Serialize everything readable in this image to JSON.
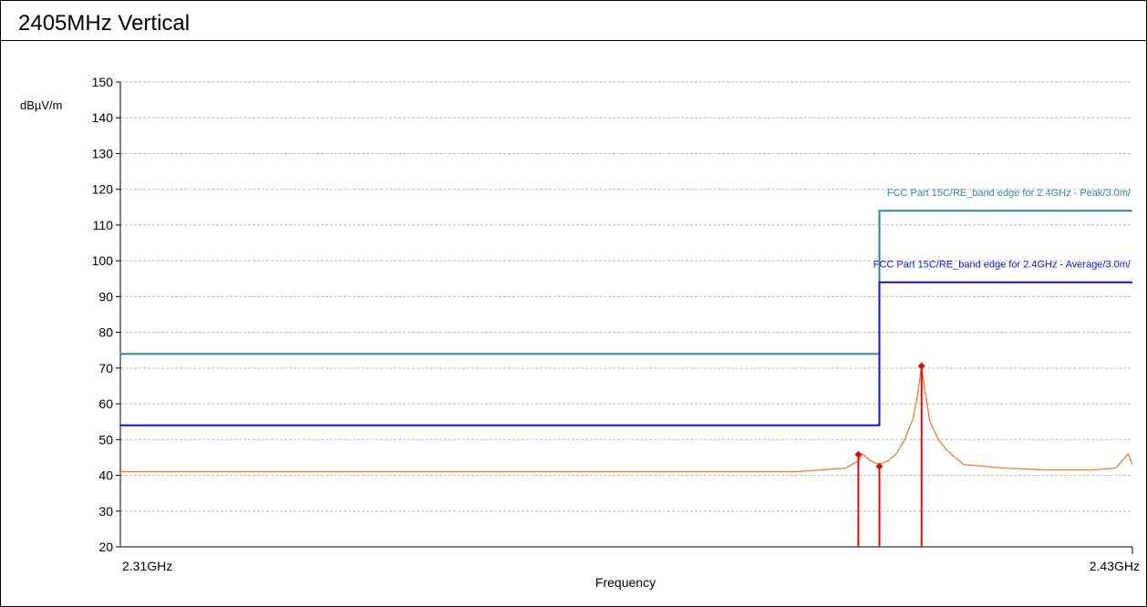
{
  "title": "2405MHz Vertical",
  "chart_data": {
    "type": "line",
    "title": "2405MHz Vertical",
    "ylabel": "dBµV/m",
    "xlabel": "Frequency",
    "x_tick_labels": [
      "2.31GHz",
      "2.43GHz"
    ],
    "xlim": [
      2.31,
      2.43
    ],
    "ylim": [
      20,
      150
    ],
    "y_ticks": [
      20,
      30,
      40,
      50,
      60,
      70,
      80,
      90,
      100,
      110,
      120,
      130,
      140,
      150
    ],
    "grid": true,
    "series": [
      {
        "name": "FCC Part 15C/RE_band edge for 2.4GHz  - Peak/3.0m/",
        "color": "#2e8b8b",
        "x": [
          2.31,
          2.4,
          2.4,
          2.43
        ],
        "y": [
          74,
          74,
          114,
          114
        ]
      },
      {
        "name": "FCC Part 15C/RE_band edge for 2.4GHz  - Average/3.0m/",
        "color": "#1111cc",
        "x": [
          2.31,
          2.4,
          2.4,
          2.43
        ],
        "y": [
          54,
          54,
          94,
          94
        ]
      },
      {
        "color": "#f07020",
        "x": [
          2.31,
          2.33,
          2.35,
          2.37,
          2.39,
          2.396,
          2.3975,
          2.398,
          2.399,
          2.4,
          2.401,
          2.402,
          2.403,
          2.404,
          2.4045,
          2.405,
          2.4055,
          2.406,
          2.407,
          2.408,
          2.41,
          2.415,
          2.42,
          2.425,
          2.428,
          2.4295,
          2.43
        ],
        "y": [
          41,
          41,
          41,
          41,
          41,
          42,
          44,
          46,
          44,
          43,
          44,
          46,
          50,
          56,
          62,
          70.5,
          62,
          55,
          50,
          47,
          43,
          42,
          41.5,
          41.5,
          42,
          46,
          43
        ]
      }
    ],
    "markers": [
      {
        "x": 2.3975,
        "y": 45.8
      },
      {
        "x": 2.4,
        "y": 42.5
      },
      {
        "x": 2.405,
        "y": 70.6
      }
    ]
  }
}
